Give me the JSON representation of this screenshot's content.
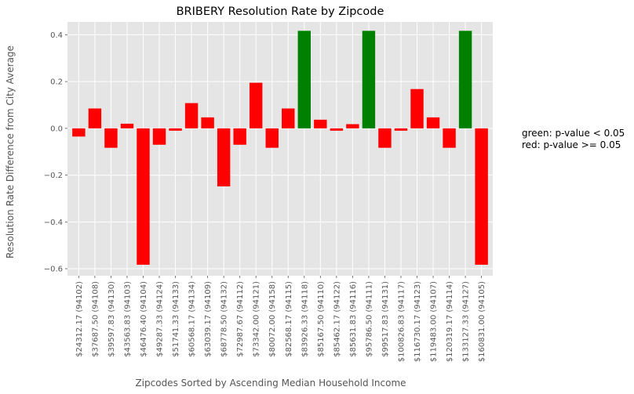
{
  "chart_data": {
    "type": "bar",
    "title": "BRIBERY Resolution Rate by Zipcode",
    "xlabel": "Zipcodes Sorted by Ascending Median Household Income",
    "ylabel": "Resolution Rate Difference from City Average",
    "ylim": [
      -0.63,
      0.455
    ],
    "yticks": [
      0.4,
      0.2,
      0.0,
      -0.2,
      -0.4,
      -0.6
    ],
    "ytick_labels": [
      "0.4",
      "0.2",
      "0.0",
      "−0.2",
      "−0.4",
      "−0.6"
    ],
    "grid": true,
    "categories": [
      "$24312.17  (94102)",
      "$37687.50  (94108)",
      "$39597.83  (94130)",
      "$43563.83  (94103)",
      "$46476.40  (94104)",
      "$49287.33  (94124)",
      "$51741.33  (94133)",
      "$60568.17  (94134)",
      "$63039.17  (94109)",
      "$68778.50  (94132)",
      "$72987.67  (94112)",
      "$73342.00  (94121)",
      "$80072.00  (94158)",
      "$82568.17  (94115)",
      "$83926.33  (94118)",
      "$85167.50  (94110)",
      "$85462.17  (94122)",
      "$85631.83  (94116)",
      "$95786.50  (94111)",
      "$99517.83  (94131)",
      "$100826.83  (94117)",
      "$116730.17  (94123)",
      "$119483.00  (94107)",
      "$120319.17  (94114)",
      "$133127.33  (94127)",
      "$160831.00  (94105)"
    ],
    "values": [
      -0.035,
      0.085,
      -0.083,
      0.02,
      -0.583,
      -0.07,
      -0.01,
      0.108,
      0.047,
      -0.248,
      -0.07,
      0.195,
      -0.083,
      0.085,
      0.417,
      0.037,
      -0.01,
      0.018,
      0.417,
      -0.083,
      -0.01,
      0.168,
      0.047,
      -0.083,
      0.417,
      -0.583
    ],
    "significant": [
      false,
      false,
      false,
      false,
      false,
      false,
      false,
      false,
      false,
      false,
      false,
      false,
      false,
      false,
      true,
      false,
      false,
      false,
      true,
      false,
      false,
      false,
      false,
      false,
      true,
      false
    ],
    "colors": {
      "significant": "#008000",
      "not_significant": "#ff0000",
      "plot_bg": "#e5e5e5",
      "grid": "#ffffff"
    },
    "legend_placement": "right",
    "legend": [
      "green: p-value < 0.05",
      "red: p-value >= 0.05"
    ]
  }
}
